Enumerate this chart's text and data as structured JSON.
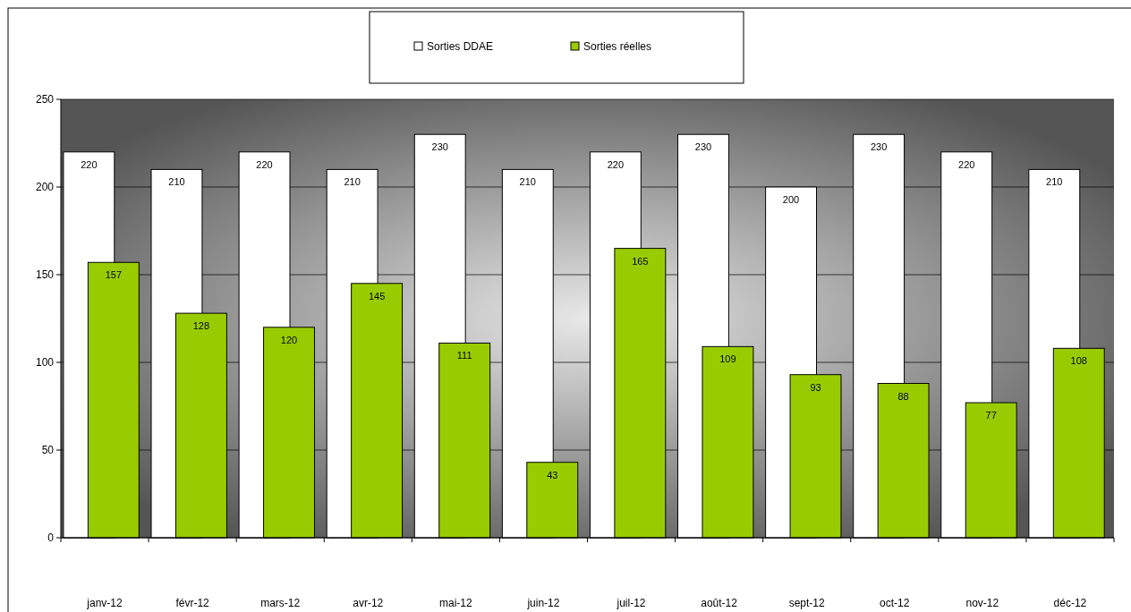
{
  "chart_data": {
    "type": "bar",
    "categories": [
      "janv-12",
      "févr-12",
      "mars-12",
      "avr-12",
      "mai-12",
      "juin-12",
      "juil-12",
      "août-12",
      "sept-12",
      "oct-12",
      "nov-12",
      "déc-12"
    ],
    "series": [
      {
        "name": "Sorties DDAE",
        "color": "#ffffff",
        "values": [
          220,
          210,
          220,
          210,
          230,
          210,
          220,
          230,
          200,
          230,
          220,
          210
        ]
      },
      {
        "name": "Sorties réelles",
        "color": "#99cc00",
        "values": [
          157,
          128,
          120,
          145,
          111,
          43,
          165,
          109,
          93,
          88,
          77,
          108
        ]
      }
    ],
    "ylim": [
      0,
      250
    ],
    "yticks": [
      0,
      50,
      100,
      150,
      200,
      250
    ],
    "grid": "y",
    "legend": "top",
    "data_labels": true
  }
}
